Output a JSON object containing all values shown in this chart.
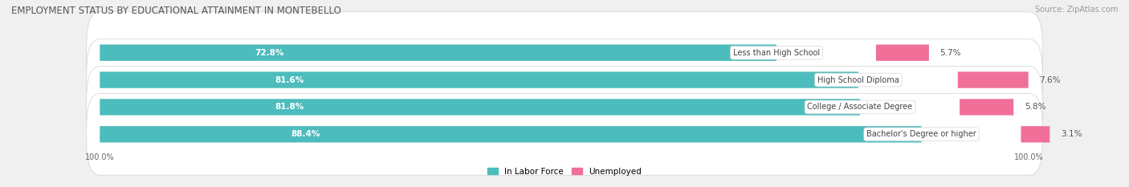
{
  "title": "EMPLOYMENT STATUS BY EDUCATIONAL ATTAINMENT IN MONTEBELLO",
  "source": "Source: ZipAtlas.com",
  "categories": [
    "Less than High School",
    "High School Diploma",
    "College / Associate Degree",
    "Bachelor's Degree or higher"
  ],
  "labor_force_pct": [
    72.8,
    81.6,
    81.8,
    88.4
  ],
  "unemployed_pct": [
    5.7,
    7.6,
    5.8,
    3.1
  ],
  "labor_force_color": "#4dbcbc",
  "unemployed_color": "#f0709a",
  "bar_bg_color": "#ffffff",
  "chart_bg_color": "#f0f0f0",
  "row_bg_color": "#f8f8f8",
  "title_fontsize": 8.5,
  "label_fontsize": 7.5,
  "pct_fontsize": 7.5,
  "axis_label_fontsize": 7,
  "legend_fontsize": 7.5,
  "x_left_label": "100.0%",
  "x_right_label": "100.0%",
  "xmin": 0,
  "xmax": 100,
  "bar_height": 0.6,
  "figsize": [
    14.06,
    2.33
  ],
  "dpi": 100
}
